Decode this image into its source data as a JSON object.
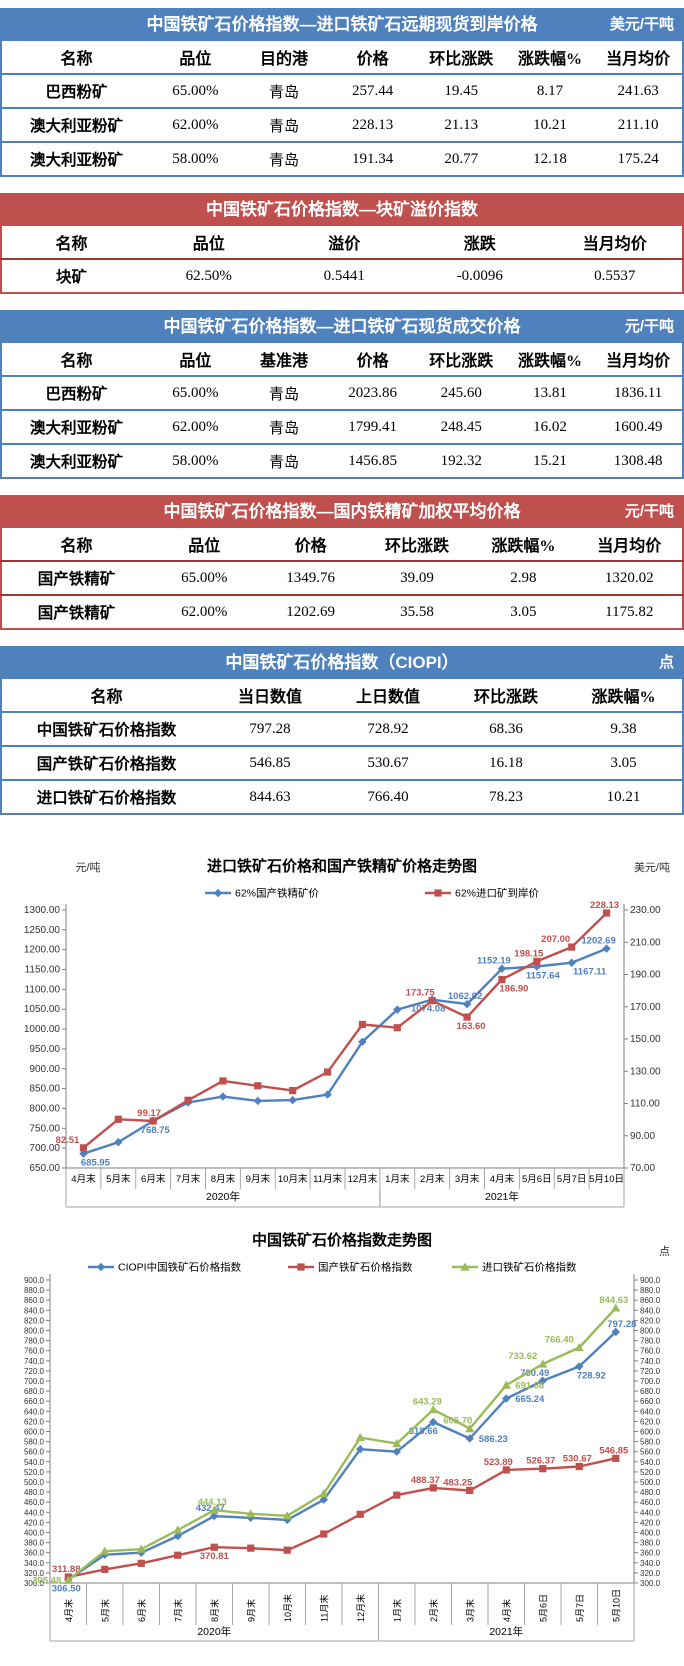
{
  "colors": {
    "blue": "#4f81bd",
    "red": "#c0504d",
    "green": "#9bbb59"
  },
  "tables": [
    {
      "theme": "blue",
      "title": "中国铁矿石价格指数—进口铁矿石远期现货到岸价格",
      "unit": "美元/干吨",
      "columns": [
        "名称",
        "品位",
        "目的港",
        "价格",
        "环比涨跌",
        "涨跌幅%",
        "当月均价"
      ],
      "rows": [
        [
          "巴西粉矿",
          "65.00%",
          "青岛",
          "257.44",
          "19.45",
          "8.17",
          "241.63"
        ],
        [
          "澳大利亚粉矿",
          "62.00%",
          "青岛",
          "228.13",
          "21.13",
          "10.21",
          "211.10"
        ],
        [
          "澳大利亚粉矿",
          "58.00%",
          "青岛",
          "191.34",
          "20.77",
          "12.18",
          "175.24"
        ]
      ]
    },
    {
      "theme": "red",
      "title": "中国铁矿石价格指数—块矿溢价指数",
      "unit": "",
      "columns": [
        "名称",
        "品位",
        "溢价",
        "涨跌",
        "当月均价"
      ],
      "rows": [
        [
          "块矿",
          "62.50%",
          "0.5441",
          "-0.0096",
          "0.5537"
        ]
      ]
    },
    {
      "theme": "blue",
      "title": "中国铁矿石价格指数—进口铁矿石现货成交价格",
      "unit": "元/干吨",
      "columns": [
        "名称",
        "品位",
        "基准港",
        "价格",
        "环比涨跌",
        "涨跌幅%",
        "当月均价"
      ],
      "rows": [
        [
          "巴西粉矿",
          "65.00%",
          "青岛",
          "2023.86",
          "245.60",
          "13.81",
          "1836.11"
        ],
        [
          "澳大利亚粉矿",
          "62.00%",
          "青岛",
          "1799.41",
          "248.45",
          "16.02",
          "1600.49"
        ],
        [
          "澳大利亚粉矿",
          "58.00%",
          "青岛",
          "1456.85",
          "192.32",
          "15.21",
          "1308.48"
        ]
      ]
    },
    {
      "theme": "red",
      "title": "中国铁矿石价格指数—国内铁精矿加权平均价格",
      "unit": "元/干吨",
      "columns": [
        "名称",
        "品位",
        "价格",
        "环比涨跌",
        "涨跌幅%",
        "当月均价"
      ],
      "rows": [
        [
          "国产铁精矿",
          "65.00%",
          "1349.76",
          "39.09",
          "2.98",
          "1320.02"
        ],
        [
          "国产铁精矿",
          "62.00%",
          "1202.69",
          "35.58",
          "3.05",
          "1175.82"
        ]
      ]
    },
    {
      "theme": "blue",
      "title": "中国铁矿石价格指数（CIOPI）",
      "unit": "点",
      "columns": [
        "名称",
        "当日数值",
        "上日数值",
        "环比涨跌",
        "涨跌幅%"
      ],
      "rows": [
        [
          "中国铁矿石价格指数",
          "797.28",
          "728.92",
          "68.36",
          "9.38"
        ],
        [
          "国产铁矿石价格指数",
          "546.85",
          "530.67",
          "16.18",
          "3.05"
        ],
        [
          "进口铁矿石价格指数",
          "844.63",
          "766.40",
          "78.23",
          "10.21"
        ]
      ]
    }
  ],
  "chart_data": [
    {
      "type": "line",
      "title": "进口铁矿石价格和国产铁精矿价格走势图",
      "unit_left": "元/吨",
      "unit_right": "美元/吨",
      "categories": [
        "4月末",
        "5月末",
        "6月末",
        "7月末",
        "8月末",
        "9月末",
        "10月末",
        "11月末",
        "12月末",
        "1月末",
        "2月末",
        "3月末",
        "4月末",
        "5月6日",
        "5月7日",
        "5月10日"
      ],
      "year_groups": [
        {
          "label": "2020年",
          "from": 0,
          "to": 8
        },
        {
          "label": "2021年",
          "from": 9,
          "to": 15
        }
      ],
      "y_left": {
        "min": 650,
        "max": 1300,
        "step": 50,
        "decimals": 2
      },
      "y_right": {
        "min": 70,
        "max": 230,
        "step": 20,
        "decimals": 2
      },
      "x_label_rotate": false,
      "legend_position": "top",
      "series": [
        {
          "name": "62%国产铁精矿价",
          "color": "#4f81bd",
          "axis": "left",
          "marker": "diamond",
          "values": [
            685.95,
            715,
            768.75,
            815,
            830,
            819,
            821,
            835,
            968,
            1049,
            1074.08,
            1062.82,
            1152.19,
            1157.64,
            1167.11,
            1202.69
          ],
          "labels": {
            "0": {
              "text": "685.95",
              "pos": "below",
              "dx": 12
            },
            "2": {
              "text": "768.75",
              "pos": "below",
              "dx": 2
            },
            "10": {
              "text": "1074.08",
              "pos": "below",
              "dx": -4
            },
            "11": {
              "text": "1062.82",
              "pos": "above",
              "dx": -2
            },
            "12": {
              "text": "1152.19",
              "pos": "above",
              "dx": -8
            },
            "13": {
              "text": "1157.64",
              "pos": "below",
              "dx": 6
            },
            "14": {
              "text": "1167.11",
              "pos": "below",
              "dx": 18
            },
            "15": {
              "text": "1202.69",
              "pos": "above",
              "dx": -8
            }
          }
        },
        {
          "name": "62%进口矿到岸价",
          "color": "#c0504d",
          "axis": "right",
          "marker": "square",
          "values": [
            82.51,
            100.2,
            99.17,
            112,
            124,
            121,
            118,
            129.5,
            159,
            157,
            173.75,
            163.6,
            186.9,
            198.15,
            207,
            228.13
          ],
          "labels": {
            "0": {
              "text": "82.51",
              "pos": "above",
              "dx": -16
            },
            "2": {
              "text": "99.17",
              "pos": "above",
              "dx": -4
            },
            "10": {
              "text": "173.75",
              "pos": "above",
              "dx": -12
            },
            "11": {
              "text": "163.60",
              "pos": "below",
              "dx": 4
            },
            "12": {
              "text": "186.90",
              "pos": "below",
              "dx": 12
            },
            "13": {
              "text": "198.15",
              "pos": "above",
              "dx": -8
            },
            "14": {
              "text": "207.00",
              "pos": "above",
              "dx": -16
            },
            "15": {
              "text": "228.13",
              "pos": "above",
              "dx": -2
            }
          }
        }
      ]
    },
    {
      "type": "line",
      "title": "中国铁矿石价格指数走势图",
      "unit_left": "",
      "unit_right": "点",
      "categories": [
        "4月末",
        "5月末",
        "6月末",
        "7月末",
        "8月末",
        "9月末",
        "10月末",
        "11月末",
        "12月末",
        "1月末",
        "2月末",
        "3月末",
        "4月末",
        "5月6日",
        "5月7日",
        "5月10日"
      ],
      "year_groups": [
        {
          "label": "2020年",
          "from": 0,
          "to": 8
        },
        {
          "label": "2021年",
          "from": 9,
          "to": 15
        }
      ],
      "y_left": {
        "min": 300,
        "max": 900,
        "step": 20,
        "decimals": 1
      },
      "y_right": {
        "min": 300,
        "max": 900,
        "step": 20,
        "decimals": 1
      },
      "x_label_rotate": true,
      "legend_position": "top",
      "series": [
        {
          "name": "CIOPI中国铁矿石价格指数",
          "color": "#4f81bd",
          "axis": "left",
          "marker": "diamond",
          "values": [
            306.5,
            356,
            360,
            393,
            432.47,
            429,
            425,
            465,
            565,
            560,
            618.66,
            586.23,
            665.24,
            700.49,
            728.92,
            797.28
          ],
          "labels": {
            "0": {
              "text": "306.50",
              "pos": "below",
              "dx": -2
            },
            "4": {
              "text": "432.47",
              "pos": "above",
              "dx": -4
            },
            "10": {
              "text": "618.66",
              "pos": "below",
              "dx": -10
            },
            "11": {
              "text": "586.23",
              "pos": "right",
              "dx": 2
            },
            "12": {
              "text": "665.24",
              "pos": "right",
              "dx": 2
            },
            "13": {
              "text": "700.49",
              "pos": "above",
              "dx": -8
            },
            "14": {
              "text": "728.92",
              "pos": "below",
              "dx": 12
            },
            "15": {
              "text": "797.28",
              "pos": "above",
              "dx": 6
            }
          }
        },
        {
          "name": "国产铁矿石价格指数",
          "color": "#c0504d",
          "axis": "left",
          "marker": "square",
          "values": [
            311.88,
            327,
            339,
            355,
            370.81,
            369,
            365,
            397,
            436,
            474,
            488.37,
            483.25,
            523.89,
            526.37,
            530.67,
            546.85
          ],
          "labels": {
            "0": {
              "text": "311.88",
              "pos": "above",
              "dx": -2
            },
            "4": {
              "text": "370.81",
              "pos": "below",
              "dx": 0
            },
            "10": {
              "text": "488.37",
              "pos": "above",
              "dx": -8
            },
            "11": {
              "text": "483.25",
              "pos": "above",
              "dx": -12
            },
            "12": {
              "text": "523.89",
              "pos": "above",
              "dx": -8
            },
            "13": {
              "text": "526.37",
              "pos": "above",
              "dx": -2
            },
            "14": {
              "text": "530.67",
              "pos": "above",
              "dx": -2
            },
            "15": {
              "text": "546.85",
              "pos": "above",
              "dx": -2
            }
          }
        },
        {
          "name": "进口铁矿石价格指数",
          "color": "#9bbb59",
          "axis": "left",
          "marker": "triangle",
          "values": [
            305.48,
            363,
            367,
            405,
            444.13,
            437,
            433,
            477,
            588,
            576,
            643.29,
            605.7,
            691.86,
            733.62,
            766.4,
            844.63
          ],
          "labels": {
            "0": {
              "text": "305.48",
              "pos": "left",
              "dx": 0
            },
            "4": {
              "text": "444.13",
              "pos": "above",
              "dx": -2
            },
            "10": {
              "text": "643.29",
              "pos": "above",
              "dx": -6
            },
            "11": {
              "text": "605.70",
              "pos": "above",
              "dx": -12
            },
            "12": {
              "text": "691.86",
              "pos": "right",
              "dx": 2
            },
            "13": {
              "text": "733.62",
              "pos": "above",
              "dx": -20
            },
            "14": {
              "text": "766.40",
              "pos": "above",
              "dx": -20
            },
            "15": {
              "text": "844.63",
              "pos": "above",
              "dx": -2
            }
          }
        }
      ]
    }
  ]
}
